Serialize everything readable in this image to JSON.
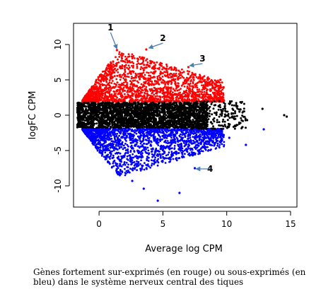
{
  "chart_data": {
    "type": "scatter",
    "title": "",
    "xlabel": "Average log CPM",
    "ylabel": "logFC CPM",
    "xlim": [
      -2,
      15.5
    ],
    "ylim": [
      -13,
      13
    ],
    "xticks": [
      "0",
      "5",
      "10",
      "15"
    ],
    "yticks": [
      "-10",
      "-5",
      "0",
      "5",
      "10"
    ],
    "xtick_values": [
      0,
      5,
      10,
      15
    ],
    "ytick_values": [
      -10,
      -5,
      0,
      5,
      10
    ],
    "grid": false,
    "legend": "none",
    "colors": {
      "up": "#ff0000",
      "down": "#0000ff",
      "ns": "#000000",
      "arrow": "#4a7fb5"
    },
    "regions": {
      "ns_band": {
        "x_range": [
          -1.7,
          8.5
        ],
        "y_range": [
          -1.8,
          1.8
        ]
      },
      "up_cloud": {
        "x_range": [
          -1.3,
          9.8
        ],
        "y_peak": 9.5
      },
      "down_cloud": {
        "x_range": [
          -1.3,
          9.8
        ],
        "y_min": -11.7
      }
    },
    "outliers": [
      {
        "group": "ns",
        "x": 14.5,
        "y": 0
      },
      {
        "group": "ns",
        "x": 14.7,
        "y": -0.2
      },
      {
        "group": "ns",
        "x": 12.8,
        "y": 0.9
      },
      {
        "group": "ns",
        "x": 11.0,
        "y": 0.5
      },
      {
        "group": "ns",
        "x": 11.6,
        "y": -0.7
      },
      {
        "group": "ns",
        "x": 10.4,
        "y": -0.3
      },
      {
        "group": "down",
        "x": 12.9,
        "y": -2.0
      },
      {
        "group": "down",
        "x": 11.5,
        "y": -4.2
      },
      {
        "group": "down",
        "x": 10.2,
        "y": -3.2
      },
      {
        "group": "down",
        "x": 7.5,
        "y": -7.5
      },
      {
        "group": "down",
        "x": 6.3,
        "y": -11.0
      },
      {
        "group": "down",
        "x": 4.6,
        "y": -12.1
      },
      {
        "group": "down",
        "x": 3.5,
        "y": -10.4
      },
      {
        "group": "down",
        "x": 2.6,
        "y": -9.3
      },
      {
        "group": "up",
        "x": 1.4,
        "y": 9.2
      },
      {
        "group": "up",
        "x": 3.7,
        "y": 9.3
      },
      {
        "group": "up",
        "x": 7.0,
        "y": 6.8
      },
      {
        "group": "up",
        "x": 9.5,
        "y": 5.0
      }
    ],
    "annotations": [
      {
        "label": "1",
        "x": 0.9,
        "y": 12.0,
        "arrow_to": [
          1.4,
          9.4
        ]
      },
      {
        "label": "2",
        "x": 5.0,
        "y": 10.5,
        "arrow_to": [
          3.9,
          9.5
        ]
      },
      {
        "label": "3",
        "x": 8.1,
        "y": 7.6,
        "arrow_to": [
          7.1,
          7.0
        ]
      },
      {
        "label": "4",
        "x": 8.7,
        "y": -8.0,
        "arrow_to": [
          7.6,
          -7.6
        ]
      }
    ]
  },
  "caption": "Gènes fortement sur-exprimés (en rouge) ou sous-exprimés (en bleu) dans le système nerveux central des tiques"
}
